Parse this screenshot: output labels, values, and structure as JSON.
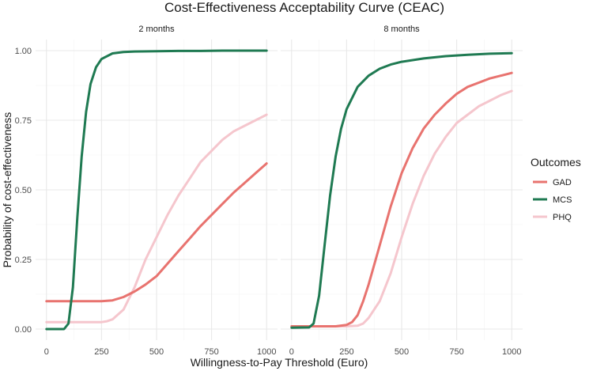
{
  "chart_data": {
    "type": "line",
    "title": "Cost-Effectiveness Acceptability Curve (CEAC)",
    "xlabel": "Willingness-to-Pay Threshold (Euro)",
    "ylabel": "Probability of cost-effectiveness",
    "xlim": [
      0,
      1000
    ],
    "ylim": [
      0,
      1
    ],
    "x_ticks": [
      0,
      250,
      500,
      750,
      1000
    ],
    "x_tick_labels": [
      "0",
      "250",
      "500",
      "750",
      "1000"
    ],
    "y_ticks": [
      0,
      0.25,
      0.5,
      0.75,
      1
    ],
    "y_tick_labels": [
      "0.00",
      "0.25",
      "0.50",
      "0.75",
      "1.00"
    ],
    "grid": true,
    "legend": {
      "title": "Outcomes",
      "position": "right",
      "entries": [
        {
          "label": "GAD",
          "color": "#E8736F"
        },
        {
          "label": "MCS",
          "color": "#1F7A52"
        },
        {
          "label": "PHQ",
          "color": "#F5C6CD"
        }
      ]
    },
    "panels": [
      {
        "label": "2 months",
        "series": [
          {
            "name": "PHQ",
            "color": "#F5C6CD",
            "x": [
              0,
              100,
              200,
              250,
              275,
              300,
              350,
              400,
              450,
              500,
              550,
              600,
              650,
              700,
              750,
              800,
              850,
              900,
              950,
              1000
            ],
            "y": [
              0.025,
              0.025,
              0.025,
              0.025,
              0.028,
              0.035,
              0.07,
              0.15,
              0.25,
              0.33,
              0.41,
              0.48,
              0.54,
              0.6,
              0.64,
              0.68,
              0.71,
              0.73,
              0.75,
              0.77
            ]
          },
          {
            "name": "GAD",
            "color": "#E8736F",
            "x": [
              0,
              100,
              200,
              250,
              300,
              350,
              400,
              450,
              500,
              550,
              600,
              650,
              700,
              750,
              800,
              850,
              900,
              950,
              1000
            ],
            "y": [
              0.1,
              0.1,
              0.1,
              0.1,
              0.103,
              0.115,
              0.135,
              0.16,
              0.19,
              0.235,
              0.28,
              0.325,
              0.37,
              0.41,
              0.45,
              0.49,
              0.525,
              0.56,
              0.595
            ]
          },
          {
            "name": "MCS",
            "color": "#1F7A52",
            "x": [
              0,
              80,
              100,
              120,
              140,
              160,
              180,
              200,
              225,
              250,
              300,
              350,
              400,
              500,
              600,
              700,
              800,
              900,
              1000
            ],
            "y": [
              0,
              0,
              0.02,
              0.15,
              0.4,
              0.62,
              0.78,
              0.88,
              0.94,
              0.97,
              0.99,
              0.995,
              0.997,
              0.998,
              0.999,
              0.999,
              1,
              1,
              1
            ]
          }
        ]
      },
      {
        "label": "8 months",
        "series": [
          {
            "name": "PHQ",
            "color": "#F5C6CD",
            "x": [
              0,
              100,
              200,
              250,
              300,
              325,
              350,
              400,
              450,
              500,
              550,
              600,
              650,
              700,
              750,
              800,
              850,
              900,
              950,
              1000
            ],
            "y": [
              0.01,
              0.01,
              0.01,
              0.01,
              0.012,
              0.02,
              0.04,
              0.1,
              0.2,
              0.33,
              0.45,
              0.55,
              0.63,
              0.69,
              0.74,
              0.77,
              0.8,
              0.82,
              0.84,
              0.855
            ]
          },
          {
            "name": "GAD",
            "color": "#E8736F",
            "x": [
              0,
              100,
              200,
              250,
              275,
              300,
              325,
              350,
              400,
              450,
              500,
              550,
              600,
              650,
              700,
              750,
              800,
              850,
              900,
              950,
              1000
            ],
            "y": [
              0.01,
              0.01,
              0.01,
              0.015,
              0.025,
              0.05,
              0.1,
              0.16,
              0.3,
              0.44,
              0.56,
              0.65,
              0.72,
              0.77,
              0.81,
              0.845,
              0.87,
              0.885,
              0.9,
              0.91,
              0.92
            ]
          },
          {
            "name": "MCS",
            "color": "#1F7A52",
            "x": [
              0,
              80,
              100,
              125,
              150,
              175,
              200,
              225,
              250,
              300,
              350,
              400,
              450,
              500,
              600,
              700,
              800,
              900,
              1000
            ],
            "y": [
              0.005,
              0.006,
              0.02,
              0.12,
              0.3,
              0.48,
              0.62,
              0.72,
              0.79,
              0.87,
              0.91,
              0.935,
              0.95,
              0.96,
              0.972,
              0.98,
              0.985,
              0.989,
              0.991
            ]
          }
        ]
      }
    ]
  }
}
